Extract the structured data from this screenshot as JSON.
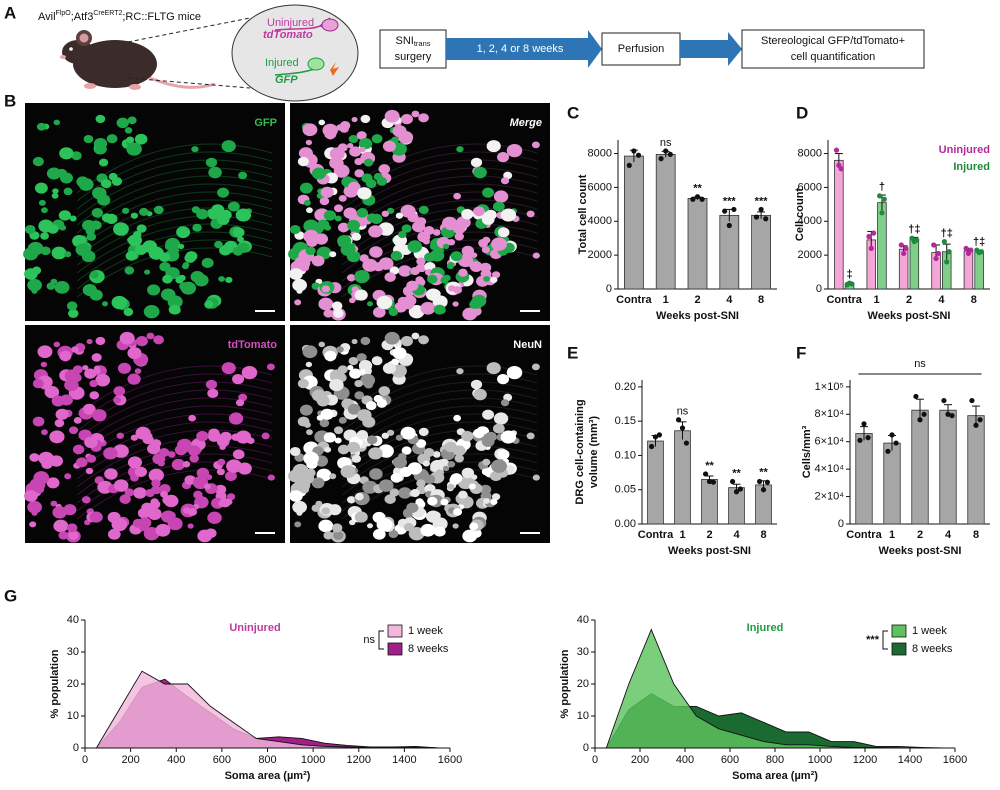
{
  "panel_labels": {
    "a": "A",
    "b": "B",
    "c": "C",
    "d": "D",
    "e": "E",
    "f": "F",
    "g": "G"
  },
  "diagram": {
    "mouse_line": {
      "avil": "Avil",
      "flpo": "FlpO",
      "atf3": ";Atf3",
      "creert2": "CreERT2",
      "rest": ";RC::FLTG mice"
    },
    "inset": {
      "uninjured": "Uninjured",
      "tdtomato": "tdTomato",
      "injured": "Injured",
      "gfp": "GFP"
    },
    "flow": {
      "sni": "SNI",
      "trans": "trans",
      "surgery": "surgery",
      "weeks": "1, 2, 4 or 8 weeks",
      "perfusion": "Perfusion",
      "quant_1": "Stereological GFP/tdTomato+",
      "quant_2": "cell quantification"
    }
  },
  "micrographs": [
    "GFP",
    "Merge",
    "tdTomato",
    "NeuN"
  ],
  "chart_data": [
    {
      "type": "bar",
      "categories": [
        "Contra",
        "1",
        "2",
        "4",
        "8"
      ],
      "values": [
        7850,
        7950,
        5350,
        4350,
        4350
      ],
      "errors": [
        350,
        180,
        80,
        350,
        200
      ],
      "points": [
        [
          7300,
          8150,
          7900
        ],
        [
          7700,
          8150,
          7950
        ],
        [
          5300,
          5450,
          5300
        ],
        [
          4600,
          3750,
          4700
        ],
        [
          4250,
          4700,
          4150
        ]
      ],
      "annotations": [
        null,
        "ns",
        "**",
        "***",
        "***"
      ],
      "ylabel": "Total cell count",
      "xlabel": "Weeks post-SNI",
      "ylim": [
        0,
        8800
      ],
      "yticks": [
        0,
        2000,
        4000,
        6000,
        8000
      ],
      "color": "#a6a6a6",
      "point_color": "#111111"
    },
    {
      "type": "grouped_bar",
      "categories": [
        "Contra",
        "1",
        "2",
        "4",
        "8"
      ],
      "ylabel": "Cell count",
      "xlabel": "Weeks post-SNI",
      "ylim": [
        0,
        8800
      ],
      "yticks": [
        0,
        2000,
        4000,
        6000,
        8000
      ],
      "legend": "top-right",
      "series": [
        {
          "name": "Uninjured",
          "color": "#f4a6d7",
          "point_color": "#b5289a",
          "values": [
            7600,
            2900,
            2350,
            2150,
            2250
          ],
          "errors": [
            400,
            500,
            200,
            450,
            150
          ],
          "points": [
            [
              8200,
              7300,
              7100
            ],
            [
              3100,
              2400,
              3300
            ],
            [
              2600,
              2100,
              2400
            ],
            [
              2600,
              1800,
              2100
            ],
            [
              2400,
              2100,
              2300
            ]
          ]
        },
        {
          "name": "Injured",
          "color": "#7fcf8a",
          "point_color": "#1f8a3a",
          "values": [
            300,
            5100,
            2900,
            2200,
            2200
          ],
          "errors": [
            80,
            450,
            150,
            450,
            100
          ],
          "points": [
            [
              250,
              350,
              300
            ],
            [
              5500,
              4500,
              5300
            ],
            [
              3000,
              2800,
              2900
            ],
            [
              2800,
              1600,
              2200
            ],
            [
              2300,
              2150,
              2200
            ]
          ],
          "annotations": [
            "‡",
            "†",
            "†‡",
            "†‡",
            "†‡"
          ]
        }
      ]
    },
    {
      "type": "bar",
      "categories": [
        "Contra",
        "1",
        "2",
        "4",
        "8"
      ],
      "values": [
        0.121,
        0.136,
        0.065,
        0.053,
        0.057
      ],
      "errors": [
        0.008,
        0.013,
        0.005,
        0.005,
        0.006
      ],
      "points": [
        [
          0.113,
          0.127,
          0.13
        ],
        [
          0.152,
          0.14,
          0.118
        ],
        [
          0.073,
          0.062,
          0.061
        ],
        [
          0.062,
          0.047,
          0.051
        ],
        [
          0.062,
          0.05,
          0.061
        ]
      ],
      "annotations": [
        null,
        "ns",
        "**",
        "**",
        "**"
      ],
      "ylabel": [
        "DRG cell-containing",
        "volume (mm³)"
      ],
      "xlabel": "Weeks post-SNI",
      "ylim": [
        0,
        0.21
      ],
      "yticks": [
        {
          "value": 0,
          "label": "0.00"
        },
        {
          "value": 0.05,
          "label": "0.05"
        },
        {
          "value": 0.1,
          "label": "0.10"
        },
        {
          "value": 0.15,
          "label": "0.15"
        },
        {
          "value": 0.2,
          "label": "0.20"
        }
      ],
      "color": "#a6a6a6",
      "point_color": "#111111"
    },
    {
      "type": "bar",
      "categories": [
        "Contra",
        "1",
        "2",
        "4",
        "8"
      ],
      "values": [
        66000,
        59000,
        83000,
        83000,
        79000
      ],
      "errors": [
        5000,
        5500,
        8000,
        4000,
        7000
      ],
      "points": [
        [
          61000,
          73000,
          63000
        ],
        [
          53000,
          65000,
          59000
        ],
        [
          93000,
          76000,
          80000
        ],
        [
          90000,
          80000,
          79000
        ],
        [
          90000,
          72000,
          76000
        ]
      ],
      "span_annotation": "ns",
      "ylabel": "Cells/mm³",
      "xlabel": "Weeks post-SNI",
      "ylim": [
        0,
        105000
      ],
      "yticks": [
        0,
        {
          "value": 20000,
          "label": "2×10⁴"
        },
        {
          "value": 40000,
          "label": "4×10⁴"
        },
        {
          "value": 60000,
          "label": "6×10⁴"
        },
        {
          "value": 80000,
          "label": "8×10⁴"
        },
        {
          "value": 100000,
          "label": "1×10⁵"
        }
      ],
      "color": "#a6a6a6",
      "point_color": "#111111"
    },
    {
      "type": "area",
      "title": "Uninjured",
      "title_color": "#c0399f",
      "significance": "ns",
      "xlabel": "Soma area (µm²)",
      "ylabel": "% population",
      "x": [
        50,
        150,
        250,
        350,
        450,
        550,
        650,
        750,
        850,
        950,
        1050,
        1150,
        1250,
        1350,
        1450,
        1550
      ],
      "xlim": [
        0,
        1600
      ],
      "xticks": [
        0,
        200,
        400,
        600,
        800,
        1000,
        1200,
        1400,
        1600
      ],
      "ylim": [
        0,
        40
      ],
      "yticks": [
        0,
        10,
        20,
        30,
        40
      ],
      "series": [
        {
          "name": "1 week",
          "color": "#f3b7dc",
          "values": [
            0,
            12,
            24,
            20,
            20,
            13,
            8,
            3,
            2,
            1,
            0.5,
            0.3,
            0.2,
            0.1,
            0.3,
            0
          ]
        },
        {
          "name": "8 weeks",
          "color": "#a0208a",
          "values": [
            0,
            8,
            19,
            21.5,
            16,
            11,
            6,
            3,
            3.5,
            3,
            1.5,
            0.8,
            0.3,
            0.3,
            0.5,
            0
          ]
        }
      ]
    },
    {
      "type": "area",
      "title": "Injured",
      "title_color": "#1f9a45",
      "significance": "***",
      "xlabel": "Soma area (µm²)",
      "ylabel": "% population",
      "x": [
        50,
        150,
        250,
        350,
        450,
        550,
        650,
        750,
        850,
        950,
        1050,
        1150,
        1250,
        1350,
        1450,
        1550
      ],
      "xlim": [
        0,
        1600
      ],
      "xticks": [
        0,
        200,
        400,
        600,
        800,
        1000,
        1200,
        1400,
        1600
      ],
      "ylim": [
        0,
        40
      ],
      "yticks": [
        0,
        10,
        20,
        30,
        40
      ],
      "series": [
        {
          "name": "1 week",
          "color": "#5ec35e",
          "values": [
            0,
            20,
            37,
            20,
            10,
            6,
            4,
            2,
            1,
            1,
            0.5,
            0.2,
            0.2,
            0,
            0,
            0
          ]
        },
        {
          "name": "8 weeks",
          "color": "#1a6b32",
          "values": [
            0,
            12,
            17,
            13,
            13,
            10,
            11,
            8,
            5,
            5,
            2,
            2,
            0.5,
            0.5,
            0.2,
            0
          ]
        }
      ]
    }
  ]
}
